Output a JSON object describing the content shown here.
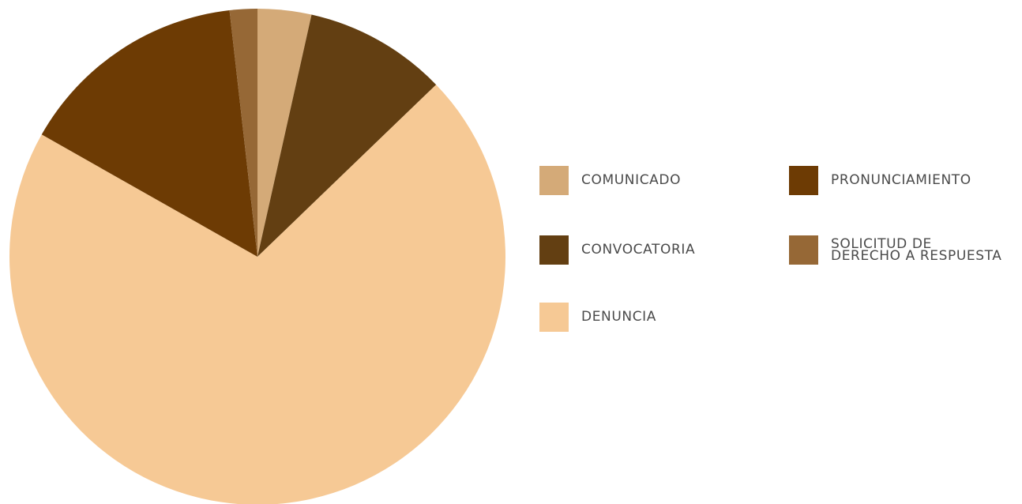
{
  "chart_data": {
    "type": "pie",
    "title": "",
    "start_angle_deg": 0,
    "direction": "clockwise",
    "legend_placement": "right",
    "slices": [
      {
        "label": "COMUNICADO",
        "value": 3.5,
        "color": "#d4aa78"
      },
      {
        "label": "CONVOCATORIA",
        "value": 9.3,
        "color": "#633f12"
      },
      {
        "label": "DENUNCIA",
        "value": 70.4,
        "color": "#f6c995"
      },
      {
        "label": "PRONUNCIAMIENTO",
        "value": 15.0,
        "color": "#6d3b04"
      },
      {
        "label": "SOLICITUD DE\nDERECHO A RESPUESTA",
        "value": 1.8,
        "color": "#966836"
      }
    ]
  }
}
